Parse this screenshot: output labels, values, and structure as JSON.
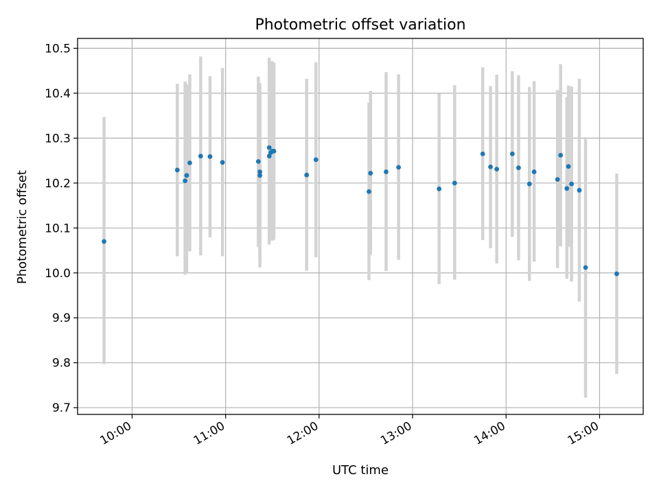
{
  "chart_data": {
    "type": "scatter",
    "title": "Photometric offset variation",
    "xlabel": "UTC time",
    "ylabel": "Photometric offset",
    "x_ticks": [
      "10:00",
      "11:00",
      "12:00",
      "13:00",
      "14:00",
      "15:00"
    ],
    "y_ticks": [
      "9.7",
      "9.8",
      "9.9",
      "10.0",
      "10.1",
      "10.2",
      "10.3",
      "10.4",
      "10.5"
    ],
    "xlim": [
      "09:25",
      "15:28"
    ],
    "ylim": [
      9.685,
      10.522
    ],
    "grid": true,
    "colors": {
      "marker": "#1f77b4",
      "errorbar": "#d3d3d3"
    },
    "points": [
      {
        "x": "09:42",
        "y": 10.07,
        "ylo": 9.797,
        "yhi": 10.347
      },
      {
        "x": "10:29",
        "y": 10.229,
        "ylo": 10.037,
        "yhi": 10.421
      },
      {
        "x": "10:34",
        "y": 10.205,
        "ylo": 9.996,
        "yhi": 10.426
      },
      {
        "x": "10:35",
        "y": 10.217,
        "ylo": 10.0,
        "yhi": 10.42
      },
      {
        "x": "10:37",
        "y": 10.245,
        "ylo": 10.048,
        "yhi": 10.442
      },
      {
        "x": "10:44",
        "y": 10.26,
        "ylo": 10.039,
        "yhi": 10.482
      },
      {
        "x": "10:50",
        "y": 10.259,
        "ylo": 10.079,
        "yhi": 10.438
      },
      {
        "x": "10:58",
        "y": 10.246,
        "ylo": 10.037,
        "yhi": 10.456
      },
      {
        "x": "11:21",
        "y": 10.248,
        "ylo": 10.058,
        "yhi": 10.437
      },
      {
        "x": "11:22",
        "y": 10.225,
        "ylo": 10.012,
        "yhi": 10.423
      },
      {
        "x": "11:22",
        "y": 10.217,
        "ylo": 10.03,
        "yhi": 10.4
      },
      {
        "x": "11:28",
        "y": 10.26,
        "ylo": 10.063,
        "yhi": 10.458
      },
      {
        "x": "11:28",
        "y": 10.279,
        "ylo": 10.068,
        "yhi": 10.479
      },
      {
        "x": "11:29",
        "y": 10.268,
        "ylo": 10.09,
        "yhi": 10.449
      },
      {
        "x": "11:30",
        "y": 10.271,
        "ylo": 10.072,
        "yhi": 10.471
      },
      {
        "x": "11:31",
        "y": 10.271,
        "ylo": 10.074,
        "yhi": 10.468
      },
      {
        "x": "11:52",
        "y": 10.218,
        "ylo": 10.005,
        "yhi": 10.432
      },
      {
        "x": "11:58",
        "y": 10.252,
        "ylo": 10.035,
        "yhi": 10.469
      },
      {
        "x": "12:32",
        "y": 10.181,
        "ylo": 9.984,
        "yhi": 10.379
      },
      {
        "x": "12:33",
        "y": 10.222,
        "ylo": 10.04,
        "yhi": 10.405
      },
      {
        "x": "12:43",
        "y": 10.225,
        "ylo": 10.004,
        "yhi": 10.447
      },
      {
        "x": "12:51",
        "y": 10.235,
        "ylo": 10.029,
        "yhi": 10.442
      },
      {
        "x": "13:17",
        "y": 10.187,
        "ylo": 9.975,
        "yhi": 10.399
      },
      {
        "x": "13:27",
        "y": 10.2,
        "ylo": 9.985,
        "yhi": 10.418
      },
      {
        "x": "13:45",
        "y": 10.265,
        "ylo": 10.073,
        "yhi": 10.458
      },
      {
        "x": "13:50",
        "y": 10.236,
        "ylo": 10.055,
        "yhi": 10.416
      },
      {
        "x": "13:54",
        "y": 10.231,
        "ylo": 10.021,
        "yhi": 10.441
      },
      {
        "x": "14:04",
        "y": 10.265,
        "ylo": 10.08,
        "yhi": 10.449
      },
      {
        "x": "14:08",
        "y": 10.234,
        "ylo": 10.028,
        "yhi": 10.44
      },
      {
        "x": "14:15",
        "y": 10.198,
        "ylo": 9.982,
        "yhi": 10.414
      },
      {
        "x": "14:18",
        "y": 10.225,
        "ylo": 10.025,
        "yhi": 10.427
      },
      {
        "x": "14:33",
        "y": 10.208,
        "ylo": 10.011,
        "yhi": 10.407
      },
      {
        "x": "14:35",
        "y": 10.262,
        "ylo": 10.059,
        "yhi": 10.465
      },
      {
        "x": "14:39",
        "y": 10.188,
        "ylo": 9.987,
        "yhi": 10.391
      },
      {
        "x": "14:40",
        "y": 10.237,
        "ylo": 10.058,
        "yhi": 10.417
      },
      {
        "x": "14:42",
        "y": 10.198,
        "ylo": 9.981,
        "yhi": 10.415
      },
      {
        "x": "14:47",
        "y": 10.184,
        "ylo": 9.936,
        "yhi": 10.432
      },
      {
        "x": "14:51",
        "y": 10.012,
        "ylo": 9.722,
        "yhi": 10.302
      },
      {
        "x": "15:11",
        "y": 9.998,
        "ylo": 9.775,
        "yhi": 10.221
      }
    ]
  }
}
